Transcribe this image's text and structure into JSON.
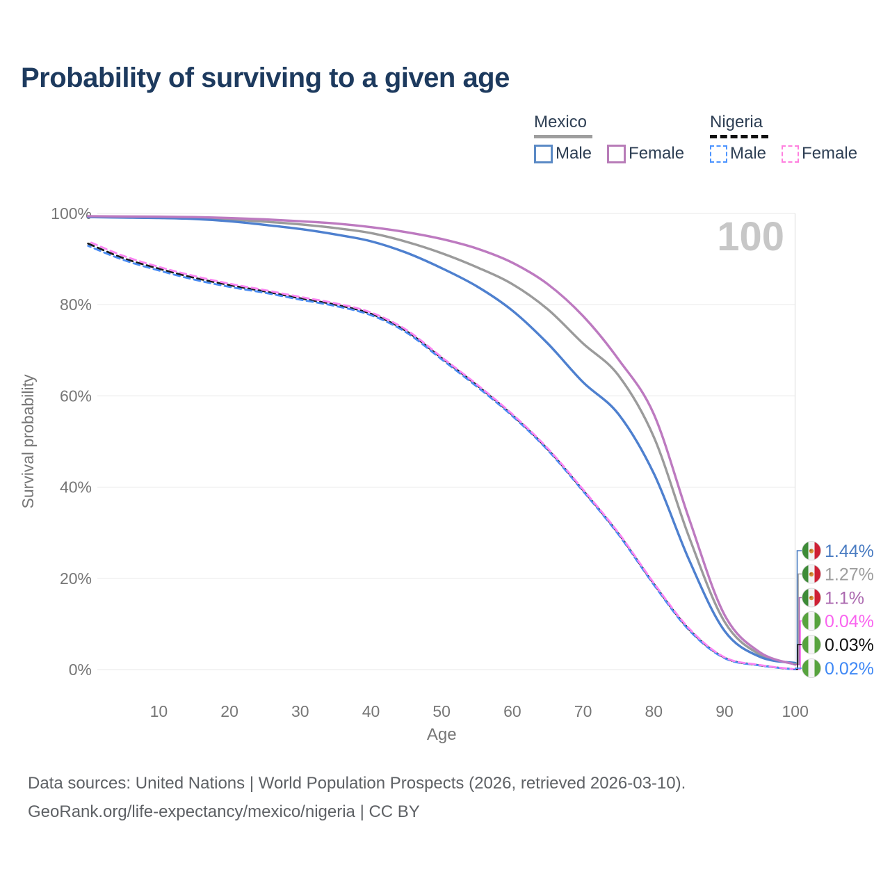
{
  "title": "Probability of surviving to a given age",
  "legend": {
    "groups": [
      {
        "label": "Mexico",
        "line_style": "solid",
        "line_color": "#9e9e9e",
        "items": [
          {
            "label": "Male",
            "color": "#5b8ac5",
            "style": "solid"
          },
          {
            "label": "Female",
            "color": "#b87cb8",
            "style": "solid"
          }
        ]
      },
      {
        "label": "Nigeria",
        "line_style": "dashed",
        "line_color": "#111111",
        "items": [
          {
            "label": "Male",
            "color": "#4d94ff",
            "style": "dashed"
          },
          {
            "label": "Female",
            "color": "#ff80df",
            "style": "dashed"
          }
        ]
      }
    ]
  },
  "chart_data": {
    "type": "line",
    "title": "Probability of surviving to a given age",
    "xlabel": "Age",
    "ylabel": "Survival probability",
    "xlim": [
      0,
      100
    ],
    "ylim": [
      0,
      100
    ],
    "grid": true,
    "watermark": "100",
    "x_ticks": [
      10,
      20,
      30,
      40,
      50,
      60,
      70,
      80,
      90,
      100
    ],
    "y_ticks": [
      {
        "label": "100%",
        "value": 100
      },
      {
        "label": "80%",
        "value": 80
      },
      {
        "label": "60%",
        "value": 60
      },
      {
        "label": "40%",
        "value": 40
      },
      {
        "label": "20%",
        "value": 20
      },
      {
        "label": "0%",
        "value": 0
      }
    ],
    "ages": [
      0,
      5,
      10,
      15,
      20,
      25,
      30,
      35,
      40,
      45,
      50,
      55,
      60,
      65,
      70,
      75,
      80,
      85,
      90,
      95,
      100
    ],
    "series": [
      {
        "id": "mexico-all",
        "name": "Mexico",
        "country": "Mexico",
        "sex": "Both",
        "style": "solid",
        "color": "#9b9b9b",
        "values": [
          99.3,
          99.25,
          99.2,
          99.0,
          98.7,
          98.2,
          97.6,
          96.8,
          95.7,
          93.8,
          91.3,
          88.2,
          84.5,
          79.0,
          71.5,
          64.5,
          51.0,
          29.0,
          10.5,
          3.3,
          1.27
        ]
      },
      {
        "id": "mexico-male",
        "name": "Mexico Male",
        "country": "Mexico",
        "sex": "Male",
        "style": "solid",
        "color": "#4e80cf",
        "values": [
          99.2,
          99.1,
          99.0,
          98.8,
          98.3,
          97.5,
          96.6,
          95.4,
          93.9,
          91.4,
          88.0,
          84.0,
          78.7,
          71.5,
          63.0,
          56.0,
          43.0,
          24.0,
          8.5,
          2.8,
          1.44
        ]
      },
      {
        "id": "mexico-female",
        "name": "Mexico Female",
        "country": "Mexico",
        "sex": "Female",
        "style": "solid",
        "color": "#bd7ac0",
        "values": [
          99.4,
          99.35,
          99.3,
          99.2,
          99.0,
          98.7,
          98.3,
          97.8,
          97.0,
          95.9,
          94.4,
          92.3,
          89.2,
          84.5,
          77.5,
          68.0,
          56.0,
          33.0,
          12.0,
          3.8,
          1.1
        ]
      },
      {
        "id": "nigeria-all",
        "name": "Nigeria",
        "country": "Nigeria",
        "sex": "Both",
        "style": "dashed",
        "color": "#1a1a1a",
        "values": [
          93.4,
          90.2,
          87.9,
          85.9,
          84.3,
          82.9,
          81.4,
          80.0,
          78.0,
          74.2,
          68.3,
          62.3,
          55.8,
          48.3,
          39.3,
          29.8,
          18.8,
          8.8,
          2.6,
          0.95,
          0.03
        ]
      },
      {
        "id": "nigeria-male",
        "name": "Nigeria Male",
        "country": "Nigeria",
        "sex": "Male",
        "style": "dashed",
        "color": "#4a8cf2",
        "values": [
          92.9,
          89.8,
          87.5,
          85.5,
          83.9,
          82.6,
          81.1,
          79.7,
          77.7,
          73.9,
          68.0,
          62.0,
          55.6,
          48.1,
          39.1,
          29.6,
          18.6,
          8.6,
          2.5,
          0.9,
          0.02
        ]
      },
      {
        "id": "nigeria-female",
        "name": "Nigeria Female",
        "country": "Nigeria",
        "sex": "Female",
        "style": "dashed",
        "color": "#fa85f2",
        "values": [
          93.9,
          90.7,
          88.3,
          86.3,
          84.6,
          83.2,
          81.7,
          80.3,
          78.3,
          74.5,
          68.5,
          62.5,
          56.0,
          48.5,
          39.5,
          30.0,
          19.0,
          9.0,
          2.7,
          1.0,
          0.04
        ]
      }
    ],
    "end_labels": [
      {
        "text": "1.44%",
        "value": 1.44,
        "series": "Mexico Male",
        "flag": "mexico",
        "color": "#4a7cc2"
      },
      {
        "text": "1.27%",
        "value": 1.27,
        "series": "Mexico",
        "flag": "mexico",
        "color": "#9e9e9e"
      },
      {
        "text": "1.1%",
        "value": 1.1,
        "series": "Mexico Female",
        "flag": "mexico",
        "color": "#ab68af"
      },
      {
        "text": "0.04%",
        "value": 0.04,
        "series": "Nigeria Female",
        "flag": "nigeria",
        "color": "#f964ef"
      },
      {
        "text": "0.03%",
        "value": 0.03,
        "series": "Nigeria",
        "flag": "nigeria",
        "color": "#111111"
      },
      {
        "text": "0.02%",
        "value": 0.02,
        "series": "Nigeria Male",
        "flag": "nigeria",
        "color": "#3f88f5"
      }
    ],
    "flags": {
      "mexico": {
        "left": "#3d8b37",
        "mid": "#f3f3f3",
        "right": "#ce2034",
        "emblem": "#d98e32"
      },
      "nigeria": {
        "left": "#57a33e",
        "mid": "#f5f5f5",
        "right": "#57a33e"
      }
    },
    "colors": {
      "grid": "#ececec",
      "axis_text": "#767676",
      "watermark": "#c7c7c7",
      "right_edge_line": "#e0e0e0"
    }
  },
  "footer": {
    "line1": "Data sources: United Nations | World Population Prospects (2026, retrieved 2026-03-10).",
    "line2": "GeoRank.org/life-expectancy/mexico/nigeria | CC BY"
  }
}
